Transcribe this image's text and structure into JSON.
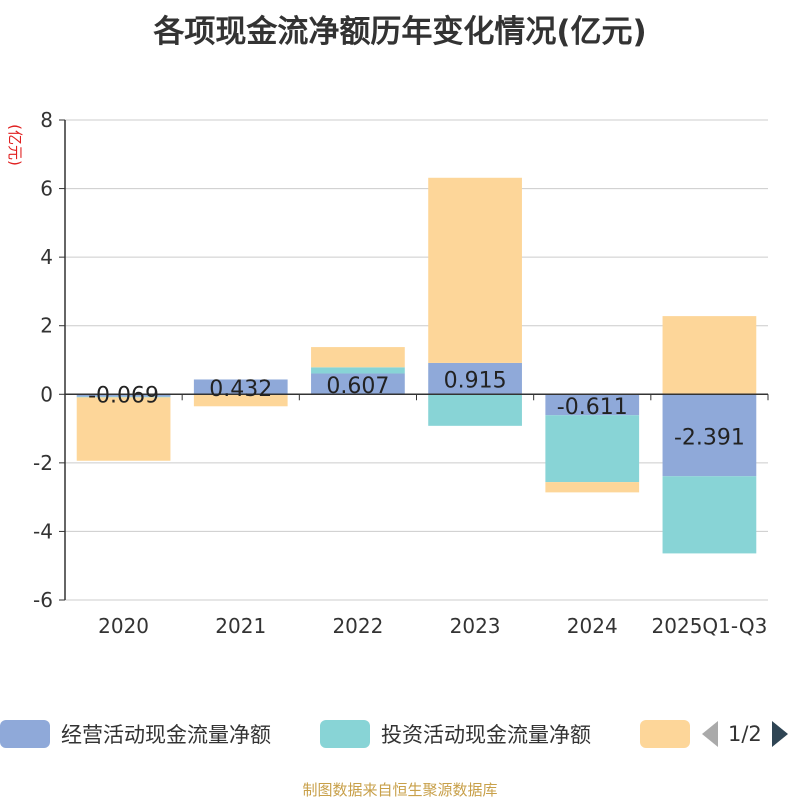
{
  "chart_data": {
    "type": "bar",
    "stacked": true,
    "title": "各项现金流净额历年变化情况(亿元)",
    "ylabel": "(亿元)",
    "ylim": [
      -6,
      8
    ],
    "yticks": [
      -6,
      -4,
      -2,
      0,
      2,
      4,
      6,
      8
    ],
    "categories": [
      "2020",
      "2021",
      "2022",
      "2023",
      "2024",
      "2025Q1-Q3"
    ],
    "series": [
      {
        "name": "经营活动现金流量净额",
        "color": "#8fa9d9",
        "values": [
          -0.069,
          0.432,
          0.607,
          0.915,
          -0.611,
          -2.391
        ],
        "labels": [
          "-0.069",
          "0.432",
          "0.607",
          "0.915",
          "-0.611",
          "-2.391"
        ]
      },
      {
        "name": "投资活动现金流量净额",
        "color": "#88d4d6",
        "values": [
          -0.02,
          0.0,
          0.18,
          -0.92,
          -1.95,
          -2.25
        ]
      },
      {
        "name": "",
        "color": "#fdd699",
        "values": [
          -1.85,
          -0.35,
          0.59,
          5.4,
          -0.3,
          2.28
        ]
      }
    ],
    "legend_page": "1/2",
    "source": "制图数据来自恒生聚源数据库"
  }
}
